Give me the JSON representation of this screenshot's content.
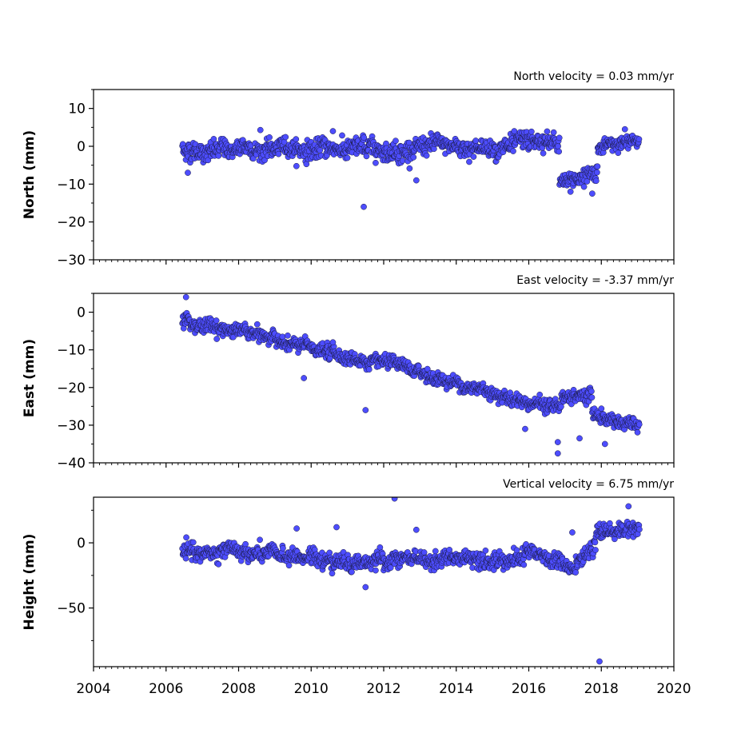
{
  "chart_data": {
    "type": "scatter",
    "xlim": [
      2004,
      2020
    ],
    "xticks": [
      2004,
      2006,
      2008,
      2010,
      2012,
      2014,
      2016,
      2018,
      2020
    ],
    "marker_color": "#4d4dff",
    "marker_edge_color": "#1a1a40",
    "panels": [
      {
        "title": "North velocity = 0.03 mm/yr",
        "ylabel": "North (mm)",
        "ylim": [
          -30,
          15
        ],
        "yticks": [
          10,
          0,
          -10,
          -20,
          -30
        ],
        "yticklabels": [
          "10",
          "0",
          "−10",
          "−20",
          "−30"
        ],
        "segments": [
          {
            "x_start": 2006.45,
            "x_end": 2016.85,
            "y_start": -1.0,
            "y_end": 0.0,
            "spread": 2.2,
            "step": 0.012
          },
          {
            "x_start": 2016.85,
            "x_end": 2017.9,
            "y_start": -9.5,
            "y_end": -6.5,
            "spread": 1.8,
            "step": 0.012
          },
          {
            "x_start": 2017.9,
            "x_end": 2019.05,
            "y_start": -0.5,
            "y_end": 1.5,
            "spread": 1.5,
            "step": 0.012
          }
        ],
        "outliers": [
          {
            "x": 2011.45,
            "y": -16
          },
          {
            "x": 2006.6,
            "y": -7
          },
          {
            "x": 2012.9,
            "y": -9
          },
          {
            "x": 2010.6,
            "y": 4
          },
          {
            "x": 2015.6,
            "y": 4
          },
          {
            "x": 2017.15,
            "y": -12
          },
          {
            "x": 2017.75,
            "y": -12.5
          },
          {
            "x": 2018.65,
            "y": 4.5
          },
          {
            "x": 2008.6,
            "y": 4.3
          }
        ]
      },
      {
        "title": "East velocity = -3.37 mm/yr",
        "ylabel": "East (mm)",
        "ylim": [
          -40,
          5
        ],
        "yticks": [
          0,
          -10,
          -20,
          -30,
          -40
        ],
        "yticklabels": [
          "0",
          "−10",
          "−20",
          "−30",
          "−40"
        ],
        "segments": [
          {
            "x_start": 2006.45,
            "x_end": 2016.9,
            "y_start": -1.5,
            "y_end": -25.5,
            "spread": 1.6,
            "step": 0.012
          },
          {
            "x_start": 2016.9,
            "x_end": 2017.75,
            "y_start": -22.5,
            "y_end": -22.5,
            "spread": 1.5,
            "step": 0.012
          },
          {
            "x_start": 2017.75,
            "x_end": 2019.05,
            "y_start": -27.0,
            "y_end": -30.5,
            "spread": 1.6,
            "step": 0.012
          }
        ],
        "outliers": [
          {
            "x": 2006.55,
            "y": 4
          },
          {
            "x": 2011.5,
            "y": -26
          },
          {
            "x": 2016.8,
            "y": -37.5
          },
          {
            "x": 2016.8,
            "y": -34.5
          },
          {
            "x": 2009.8,
            "y": -17.5
          },
          {
            "x": 2015.9,
            "y": -31
          },
          {
            "x": 2017.4,
            "y": -33.5
          },
          {
            "x": 2018.1,
            "y": -35
          },
          {
            "x": 2010.6,
            "y": -8
          }
        ]
      },
      {
        "title": "Vertical velocity = 6.75 mm/yr",
        "ylabel": "Height (mm)",
        "ylim": [
          -95,
          35
        ],
        "yticks": [
          0,
          -50
        ],
        "yticklabels": [
          "0",
          "−50"
        ],
        "segments": [
          {
            "x_start": 2006.45,
            "x_end": 2012.0,
            "y_start": -8.0,
            "y_end": -14.0,
            "spread": 5.5,
            "step": 0.012
          },
          {
            "x_start": 2012.0,
            "x_end": 2015.9,
            "y_start": -14.0,
            "y_end": -10.0,
            "spread": 5.5,
            "step": 0.012
          },
          {
            "x_start": 2015.9,
            "x_end": 2017.3,
            "y_start": -6.0,
            "y_end": -20.0,
            "spread": 5.5,
            "step": 0.012
          },
          {
            "x_start": 2017.3,
            "x_end": 2017.85,
            "y_start": -14.0,
            "y_end": -6.0,
            "spread": 4.5,
            "step": 0.012
          },
          {
            "x_start": 2017.85,
            "x_end": 2019.05,
            "y_start": 8.0,
            "y_end": 13.0,
            "spread": 5.0,
            "step": 0.012
          }
        ],
        "outliers": [
          {
            "x": 2012.3,
            "y": 34
          },
          {
            "x": 2017.95,
            "y": -91
          },
          {
            "x": 2011.5,
            "y": -34
          },
          {
            "x": 2012.9,
            "y": 10
          },
          {
            "x": 2017.2,
            "y": 8
          },
          {
            "x": 2018.75,
            "y": 28
          },
          {
            "x": 2010.7,
            "y": 12
          },
          {
            "x": 2009.6,
            "y": 11
          }
        ]
      }
    ]
  }
}
